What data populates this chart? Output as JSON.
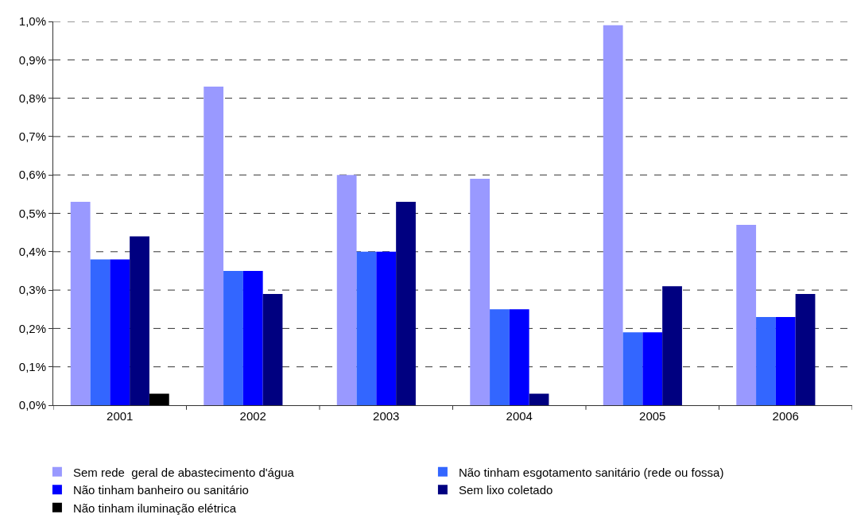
{
  "chart_data": {
    "type": "bar",
    "categories": [
      "2001",
      "2002",
      "2003",
      "2004",
      "2005",
      "2006"
    ],
    "series": [
      {
        "name": "Sem rede  geral de abastecimento d'água",
        "color": "#9999ff",
        "values": [
          0.53,
          0.83,
          0.6,
          0.59,
          0.99,
          0.47
        ]
      },
      {
        "name": "Não tinham esgotamento sanitário (rede ou fossa)",
        "color": "#3366ff",
        "values": [
          0.38,
          0.35,
          0.4,
          0.25,
          0.19,
          0.23
        ]
      },
      {
        "name": "Não tinham banheiro ou sanitário",
        "color": "#0000ff",
        "values": [
          0.38,
          0.35,
          0.4,
          0.25,
          0.19,
          0.23
        ]
      },
      {
        "name": "Sem lixo coletado",
        "color": "#000080",
        "values": [
          0.44,
          0.29,
          0.53,
          0.03,
          0.31,
          0.29
        ]
      },
      {
        "name": "Não tinham iluminação elétrica",
        "color": "#000000",
        "values": [
          0.03,
          null,
          null,
          null,
          null,
          null
        ]
      }
    ],
    "ylim": [
      0,
      1.0
    ],
    "yticks": [
      {
        "value": 0,
        "label": "0,0%"
      },
      {
        "value": 0.1,
        "label": "0,1%"
      },
      {
        "value": 0.2,
        "label": "0,2%"
      },
      {
        "value": 0.3,
        "label": "0,3%"
      },
      {
        "value": 0.4,
        "label": "0,4%"
      },
      {
        "value": 0.5,
        "label": "0,5%"
      },
      {
        "value": 0.6,
        "label": "0,6%"
      },
      {
        "value": 0.7,
        "label": "0,7%"
      },
      {
        "value": 0.8,
        "label": "0,8%"
      },
      {
        "value": 0.9,
        "label": "0,9%"
      },
      {
        "value": 1.0,
        "label": "1,0%"
      }
    ],
    "grid": "y",
    "legend": "bottom"
  }
}
